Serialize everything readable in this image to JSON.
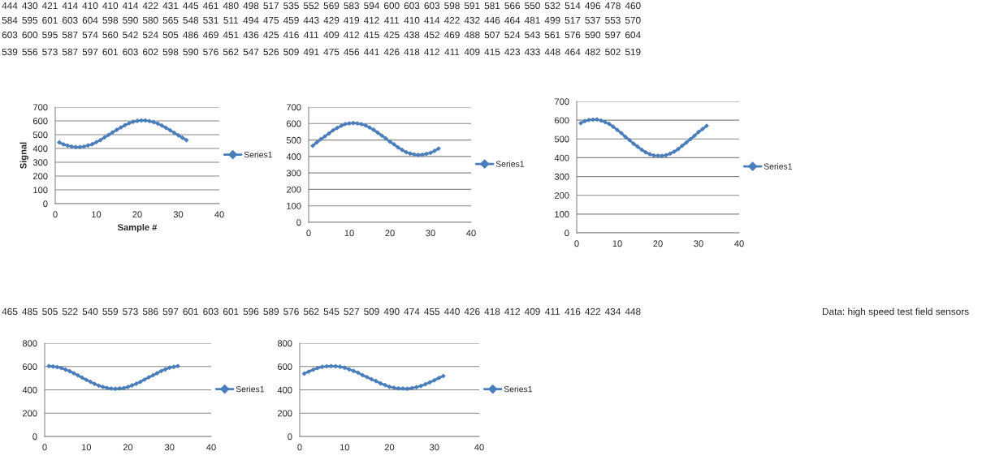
{
  "chart_data": [
    {
      "type": "line",
      "x": [
        1,
        2,
        3,
        4,
        5,
        6,
        7,
        8,
        9,
        10,
        11,
        12,
        13,
        14,
        15,
        16,
        17,
        18,
        19,
        20,
        21,
        22,
        23,
        24,
        25,
        26,
        27,
        28,
        29,
        30,
        31,
        32
      ],
      "xlabel": "Sample #",
      "ylabel": "Signal",
      "xlim": [
        0,
        40
      ],
      "xticks": [
        0,
        10,
        20,
        30,
        40
      ],
      "ylim": [
        0,
        700
      ],
      "yticks": [
        0,
        100,
        200,
        300,
        400,
        500,
        600,
        700
      ],
      "grid": "y",
      "legend": "right",
      "marker": "diamond",
      "annotations": [
        "444",
        "430",
        "421",
        "414",
        "410",
        "410",
        "414",
        "422",
        "431",
        "445",
        "461",
        "480",
        "498",
        "517",
        "535",
        "552",
        "569",
        "583",
        "594",
        "600",
        "603",
        "603",
        "598",
        "591",
        "581",
        "566",
        "550",
        "532",
        "514",
        "496",
        "478",
        "460"
      ],
      "series": [
        {
          "name": "Series1",
          "color": "#4a7ebb",
          "values": [
            444,
            430,
            421,
            414,
            410,
            410,
            414,
            422,
            431,
            445,
            461,
            480,
            498,
            517,
            535,
            552,
            569,
            583,
            594,
            600,
            603,
            603,
            598,
            591,
            581,
            566,
            550,
            532,
            514,
            496,
            478,
            460
          ]
        }
      ]
    },
    {
      "type": "line",
      "x": [
        1,
        2,
        3,
        4,
        5,
        6,
        7,
        8,
        9,
        10,
        11,
        12,
        13,
        14,
        15,
        16,
        17,
        18,
        19,
        20,
        21,
        22,
        23,
        24,
        25,
        26,
        27,
        28,
        29,
        30,
        31,
        32
      ],
      "xlim": [
        0,
        40
      ],
      "xticks": [
        0,
        10,
        20,
        30,
        40
      ],
      "ylim": [
        0,
        700
      ],
      "yticks": [
        0,
        100,
        200,
        300,
        400,
        500,
        600,
        700
      ],
      "grid": "y",
      "legend": "right",
      "marker": "diamond",
      "annotations": [
        "465",
        "485",
        "505",
        "522",
        "540",
        "559",
        "573",
        "586",
        "597",
        "601",
        "603",
        "601",
        "596",
        "589",
        "576",
        "562",
        "545",
        "527",
        "509",
        "490",
        "474",
        "455",
        "440",
        "426",
        "418",
        "412",
        "409",
        "411",
        "416",
        "422",
        "434",
        "448",
        "Data: high speed test field sensors"
      ],
      "series": [
        {
          "name": "Series1",
          "color": "#4a7ebb",
          "values": [
            465,
            485,
            505,
            522,
            540,
            559,
            573,
            586,
            597,
            601,
            603,
            601,
            596,
            589,
            576,
            562,
            545,
            527,
            509,
            490,
            474,
            455,
            440,
            426,
            418,
            412,
            409,
            411,
            416,
            422,
            434,
            448
          ]
        }
      ]
    },
    {
      "type": "line",
      "x": [
        1,
        2,
        3,
        4,
        5,
        6,
        7,
        8,
        9,
        10,
        11,
        12,
        13,
        14,
        15,
        16,
        17,
        18,
        19,
        20,
        21,
        22,
        23,
        24,
        25,
        26,
        27,
        28,
        29,
        30,
        31,
        32
      ],
      "xlim": [
        0,
        40
      ],
      "xticks": [
        0,
        10,
        20,
        30,
        40
      ],
      "ylim": [
        0,
        700
      ],
      "yticks": [
        0,
        100,
        200,
        300,
        400,
        500,
        600,
        700
      ],
      "grid": "y",
      "legend": "right",
      "marker": "diamond",
      "annotations": [
        "584",
        "595",
        "601",
        "603",
        "604",
        "598",
        "590",
        "580",
        "565",
        "548",
        "531",
        "511",
        "494",
        "475",
        "459",
        "443",
        "429",
        "419",
        "412",
        "411",
        "410",
        "414",
        "422",
        "432",
        "446",
        "464",
        "481",
        "499",
        "517",
        "537",
        "553",
        "570"
      ],
      "series": [
        {
          "name": "Series1",
          "color": "#4a7ebb",
          "values": [
            584,
            595,
            601,
            603,
            604,
            598,
            590,
            580,
            565,
            548,
            531,
            511,
            494,
            475,
            459,
            443,
            429,
            419,
            412,
            411,
            410,
            414,
            422,
            432,
            446,
            464,
            481,
            499,
            517,
            537,
            553,
            570
          ]
        }
      ]
    },
    {
      "type": "line",
      "x": [
        1,
        2,
        3,
        4,
        5,
        6,
        7,
        8,
        9,
        10,
        11,
        12,
        13,
        14,
        15,
        16,
        17,
        18,
        19,
        20,
        21,
        22,
        23,
        24,
        25,
        26,
        27,
        28,
        29,
        30,
        31,
        32
      ],
      "xlim": [
        0,
        40
      ],
      "xticks": [
        0,
        10,
        20,
        30,
        40
      ],
      "ylim": [
        0,
        800
      ],
      "yticks": [
        0,
        200,
        400,
        600,
        800
      ],
      "grid": "y",
      "legend": "right",
      "marker": "diamond",
      "annotations": [
        "603",
        "600",
        "595",
        "587",
        "574",
        "560",
        "542",
        "524",
        "505",
        "486",
        "469",
        "451",
        "436",
        "425",
        "416",
        "411",
        "409",
        "412",
        "415",
        "425",
        "438",
        "452",
        "469",
        "488",
        "507",
        "524",
        "543",
        "561",
        "576",
        "590",
        "597",
        "604"
      ],
      "series": [
        {
          "name": "Series1",
          "color": "#4a7ebb",
          "values": [
            603,
            600,
            595,
            587,
            574,
            560,
            542,
            524,
            505,
            486,
            469,
            451,
            436,
            425,
            416,
            411,
            409,
            412,
            415,
            425,
            438,
            452,
            469,
            488,
            507,
            524,
            543,
            561,
            576,
            590,
            597,
            604
          ]
        }
      ]
    },
    {
      "type": "line",
      "x": [
        1,
        2,
        3,
        4,
        5,
        6,
        7,
        8,
        9,
        10,
        11,
        12,
        13,
        14,
        15,
        16,
        17,
        18,
        19,
        20,
        21,
        22,
        23,
        24,
        25,
        26,
        27,
        28,
        29,
        30,
        31,
        32
      ],
      "xlim": [
        0,
        40
      ],
      "xticks": [
        0,
        10,
        20,
        30,
        40
      ],
      "ylim": [
        0,
        800
      ],
      "yticks": [
        0,
        200,
        400,
        600,
        800
      ],
      "grid": "y",
      "legend": "right",
      "marker": "diamond",
      "annotations": [
        "539",
        "556",
        "573",
        "587",
        "597",
        "601",
        "603",
        "602",
        "598",
        "590",
        "576",
        "562",
        "547",
        "526",
        "509",
        "491",
        "475",
        "456",
        "441",
        "426",
        "418",
        "412",
        "411",
        "409",
        "415",
        "423",
        "433",
        "448",
        "464",
        "482",
        "502",
        "519"
      ],
      "series": [
        {
          "name": "Series1",
          "color": "#4a7ebb",
          "values": [
            539,
            556,
            573,
            587,
            597,
            601,
            603,
            602,
            598,
            590,
            576,
            562,
            547,
            526,
            509,
            491,
            475,
            456,
            441,
            426,
            418,
            412,
            411,
            409,
            415,
            423,
            433,
            448,
            464,
            482,
            502,
            519
          ]
        }
      ]
    }
  ]
}
